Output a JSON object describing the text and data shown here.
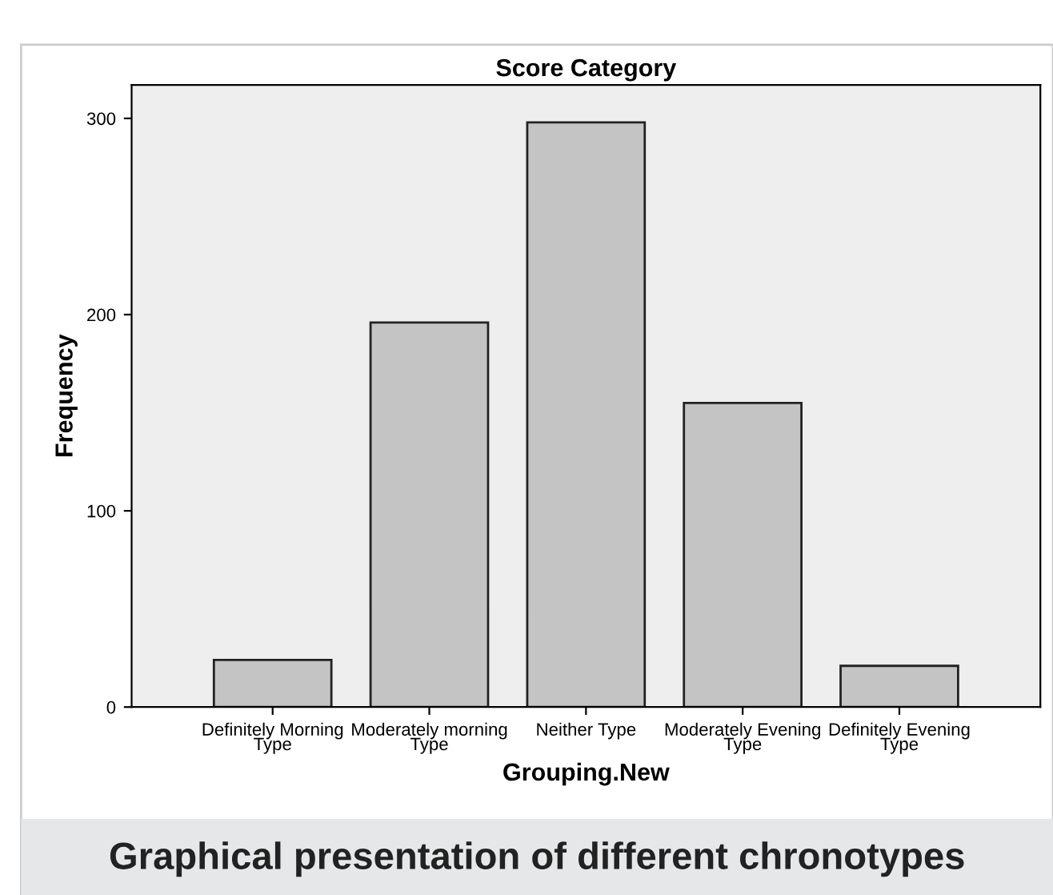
{
  "chart_data": {
    "type": "bar",
    "title": "Score Category",
    "xlabel": "Grouping.New",
    "ylabel": "Frequency",
    "categories": [
      "Definitely Morning\nType",
      "Moderately morning\nType",
      "Neither Type",
      "Moderately Evening\nType",
      "Definitely Evening\nType"
    ],
    "values": [
      24,
      196,
      298,
      155,
      21
    ],
    "color": "#c4c4c4",
    "ylim": [
      0,
      317
    ],
    "yticks": [
      0,
      100,
      200,
      300
    ],
    "grid": false,
    "legend": false,
    "annotations": [
      "Graphical presentation of different chronotypes"
    ]
  }
}
